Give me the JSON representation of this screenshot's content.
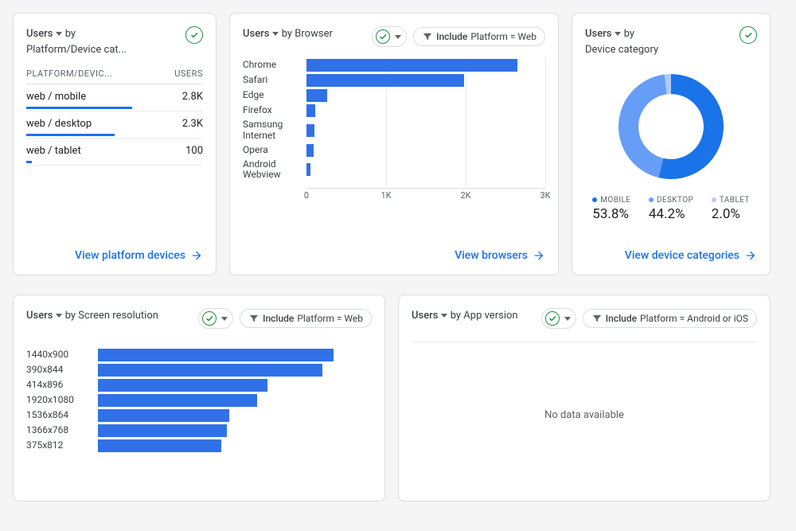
{
  "colors": {
    "primary": "#1a73e8",
    "bar": "#3071e8",
    "success": "#1e8e3e",
    "text": "#3c4043",
    "muted": "#5f6368",
    "border": "#dadce0"
  },
  "card_platform": {
    "metric": "Users",
    "by": "by",
    "dimension": "Platform/Device cat...",
    "col_dim": "PLATFORM/DEVIC...",
    "col_val": "USERS",
    "rows": [
      {
        "label": "web / mobile",
        "value": "2.8K",
        "spark_pct": 60
      },
      {
        "label": "web / desktop",
        "value": "2.3K",
        "spark_pct": 50
      },
      {
        "label": "web / tablet",
        "value": "100",
        "spark_pct": 3
      }
    ],
    "footer": "View platform devices"
  },
  "card_browser": {
    "metric": "Users",
    "by": "by Browser",
    "filter_label": "Include",
    "filter_text": "Platform = Web",
    "chart": {
      "type": "bar",
      "label_width": 72,
      "bar_color": "#3071e8",
      "xmax": 3000,
      "ticks": [
        0,
        1000,
        2000,
        3000
      ],
      "tick_labels": [
        "0",
        "1K",
        "2K",
        "3K"
      ],
      "rows": [
        {
          "label": "Chrome",
          "value": 2650
        },
        {
          "label": "Safari",
          "value": 1980
        },
        {
          "label": "Edge",
          "value": 260
        },
        {
          "label": "Firefox",
          "value": 110
        },
        {
          "label": "Samsung Internet",
          "value": 100
        },
        {
          "label": "Opera",
          "value": 90
        },
        {
          "label": "Android Webview",
          "value": 50
        }
      ]
    },
    "footer": "View browsers"
  },
  "card_device": {
    "metric": "Users",
    "by": "by",
    "dimension": "Device category",
    "donut": {
      "type": "pie",
      "inner_ratio": 0.62,
      "slices": [
        {
          "label": "MOBILE",
          "pct": 53.8,
          "value_text": "53.8%",
          "color": "#1a73e8"
        },
        {
          "label": "DESKTOP",
          "pct": 44.2,
          "value_text": "44.2%",
          "color": "#669df6"
        },
        {
          "label": "TABLET",
          "pct": 2.0,
          "value_text": "2.0%",
          "color": "#aecbfa"
        }
      ]
    },
    "footer": "View device categories"
  },
  "card_screen": {
    "metric": "Users",
    "by": "by Screen resolution",
    "filter_label": "Include",
    "filter_text": "Platform = Web",
    "chart": {
      "type": "bar",
      "label_width": 82,
      "bar_color": "#3071e8",
      "xmax": 100,
      "rows": [
        {
          "label": "1440x900",
          "value": 86
        },
        {
          "label": "390x844",
          "value": 82
        },
        {
          "label": "414x896",
          "value": 62
        },
        {
          "label": "1920x1080",
          "value": 58
        },
        {
          "label": "1536x864",
          "value": 48
        },
        {
          "label": "1366x768",
          "value": 47
        },
        {
          "label": "375x812",
          "value": 45
        }
      ]
    }
  },
  "card_appver": {
    "metric": "Users",
    "by": "by App version",
    "filter_label": "Include",
    "filter_text": "Platform = Android or iOS",
    "empty": "No data available"
  }
}
